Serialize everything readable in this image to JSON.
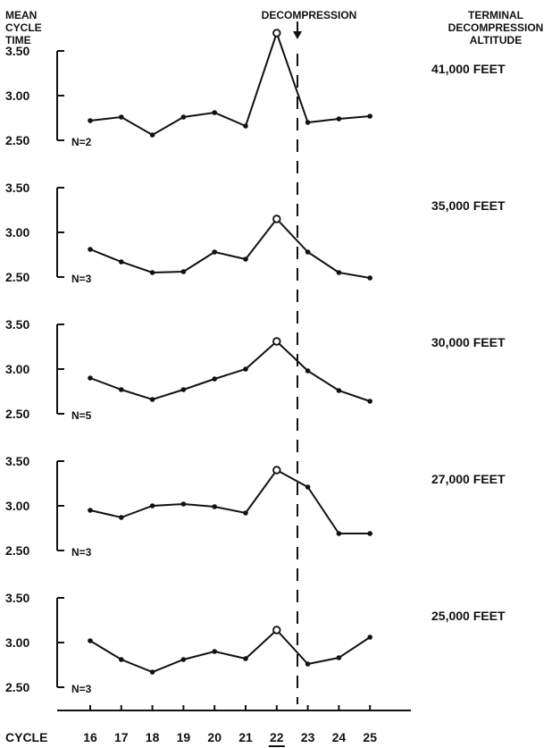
{
  "figure": {
    "y_axis_title": [
      "MEAN",
      "CYCLE",
      "TIME"
    ],
    "right_header": [
      "TERMINAL",
      "DECOMPRESSION",
      "ALTITUDE"
    ],
    "event_label": "DECOMPRESSION",
    "x_axis_label": "CYCLE"
  },
  "chart_data": [
    {
      "type": "line",
      "series": [
        {
          "name": "41,000 FEET",
          "values": [
            2.72,
            2.76,
            2.56,
            2.76,
            2.81,
            2.66,
            3.7,
            2.7,
            2.74,
            2.77
          ]
        }
      ],
      "x": [
        16,
        17,
        18,
        19,
        20,
        21,
        22,
        23,
        24,
        25
      ],
      "n_label": "N=2",
      "altitude_label": "41,000 FEET",
      "yticks": [
        "3.50",
        "3.00",
        "2.50"
      ],
      "ylim": [
        2.5,
        3.5
      ],
      "decompression_cycle": 22
    },
    {
      "type": "line",
      "series": [
        {
          "name": "35,000 FEET",
          "values": [
            2.81,
            2.67,
            2.55,
            2.56,
            2.78,
            2.7,
            3.15,
            2.78,
            2.55,
            2.49
          ]
        }
      ],
      "x": [
        16,
        17,
        18,
        19,
        20,
        21,
        22,
        23,
        24,
        25
      ],
      "n_label": "N=3",
      "altitude_label": "35,000 FEET",
      "yticks": [
        "3.50",
        "3.00",
        "2.50"
      ],
      "ylim": [
        2.5,
        3.5
      ],
      "decompression_cycle": 22
    },
    {
      "type": "line",
      "series": [
        {
          "name": "30,000 FEET",
          "values": [
            2.9,
            2.77,
            2.66,
            2.77,
            2.89,
            3.0,
            3.31,
            2.98,
            2.76,
            2.64
          ]
        }
      ],
      "x": [
        16,
        17,
        18,
        19,
        20,
        21,
        22,
        23,
        24,
        25
      ],
      "n_label": "N=5",
      "altitude_label": "30,000 FEET",
      "yticks": [
        "3.50",
        "3.00",
        "2.50"
      ],
      "ylim": [
        2.5,
        3.5
      ],
      "decompression_cycle": 22
    },
    {
      "type": "line",
      "series": [
        {
          "name": "27,000 FEET",
          "values": [
            2.95,
            2.87,
            3.0,
            3.02,
            2.99,
            2.92,
            3.4,
            3.21,
            2.69,
            2.69
          ]
        }
      ],
      "x": [
        16,
        17,
        18,
        19,
        20,
        21,
        22,
        23,
        24,
        25
      ],
      "n_label": "N=3",
      "altitude_label": "27,000 FEET",
      "yticks": [
        "3.50",
        "3.00",
        "2.50"
      ],
      "ylim": [
        2.5,
        3.5
      ],
      "decompression_cycle": 22
    },
    {
      "type": "line",
      "series": [
        {
          "name": "25,000 FEET",
          "values": [
            3.02,
            2.81,
            2.67,
            2.81,
            2.9,
            2.82,
            3.14,
            2.76,
            2.83,
            3.06
          ]
        }
      ],
      "x": [
        16,
        17,
        18,
        19,
        20,
        21,
        22,
        23,
        24,
        25
      ],
      "n_label": "N=3",
      "altitude_label": "25,000 FEET",
      "yticks": [
        "3.50",
        "3.00",
        "2.50"
      ],
      "ylim": [
        2.5,
        3.5
      ],
      "decompression_cycle": 22
    }
  ],
  "x_axis": {
    "tick_labels": [
      "16",
      "17",
      "18",
      "19",
      "20",
      "21",
      "22",
      "23",
      "24",
      "25"
    ],
    "underlined_tick": "22"
  },
  "colors": {
    "ink": "#111111",
    "background": "#ffffff"
  }
}
